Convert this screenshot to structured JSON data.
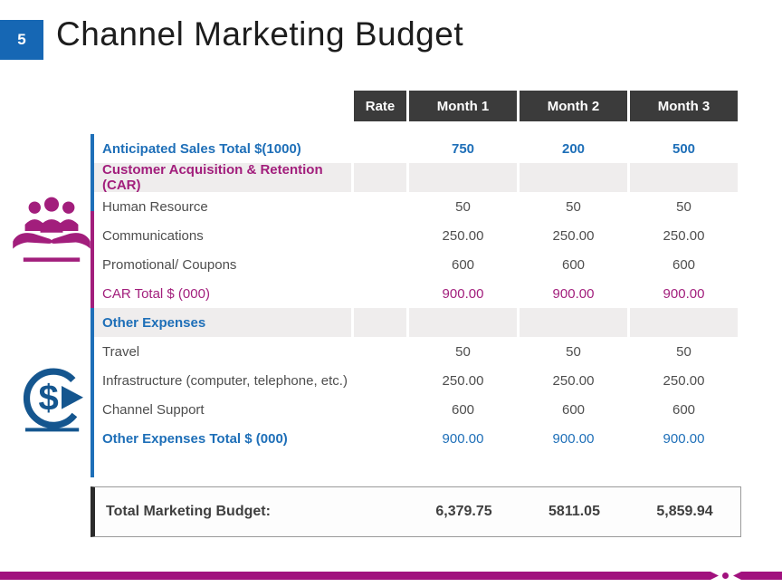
{
  "slide": {
    "number": "5",
    "title": "Channel Marketing Budget"
  },
  "colors": {
    "accent_blue": "#1e6fb8",
    "accent_magenta": "#a21e7c",
    "header_dark": "#3b3b3b",
    "section_band_gray": "#efeded",
    "body_text_gray": "#4e4e4e",
    "slide_number_box_blue": "#1667b4",
    "bottom_bar_magenta": "#a1117e",
    "icon_blue": "#15568f"
  },
  "table": {
    "column_headers": [
      "Rate",
      "Month 1",
      "Month 2",
      "Month 3"
    ],
    "rows": [
      {
        "label": "Anticipated Sales Total $(1000)",
        "style": "sales",
        "values": [
          "",
          "750",
          "200",
          "500"
        ]
      },
      {
        "label": "Customer Acquisition & Retention (CAR)",
        "style": "section-car",
        "values": [
          "",
          "",
          "",
          ""
        ]
      },
      {
        "label": "Human Resource",
        "style": "normal",
        "values": [
          "",
          "50",
          "50",
          "50"
        ]
      },
      {
        "label": "Communications",
        "style": "normal",
        "values": [
          "",
          "250.00",
          "250.00",
          "250.00"
        ]
      },
      {
        "label": "Promotional/ Coupons",
        "style": "normal",
        "values": [
          "",
          "600",
          "600",
          "600"
        ]
      },
      {
        "label": "CAR Total $ (000)",
        "style": "car-total",
        "values": [
          "",
          "900.00",
          "900.00",
          "900.00"
        ]
      },
      {
        "label": "Other Expenses",
        "style": "section-other",
        "values": [
          "",
          "",
          "",
          ""
        ]
      },
      {
        "label": "Travel",
        "style": "normal",
        "values": [
          "",
          "50",
          "50",
          "50"
        ]
      },
      {
        "label": "Infrastructure (computer, telephone, etc.)",
        "style": "normal",
        "values": [
          "",
          "250.00",
          "250.00",
          "250.00"
        ]
      },
      {
        "label": "Channel Support",
        "style": "normal",
        "values": [
          "",
          "600",
          "600",
          "600"
        ]
      },
      {
        "label": "Other Expenses Total $ (000)",
        "style": "other-total",
        "values": [
          "",
          "900.00",
          "900.00",
          "900.00"
        ]
      }
    ],
    "total_row": {
      "label": "Total Marketing Budget:",
      "values": [
        "6,379.75",
        "5811.05",
        "5,859.94"
      ]
    }
  },
  "icons": [
    {
      "name": "team-care-icon"
    },
    {
      "name": "money-cycle-icon"
    }
  ]
}
